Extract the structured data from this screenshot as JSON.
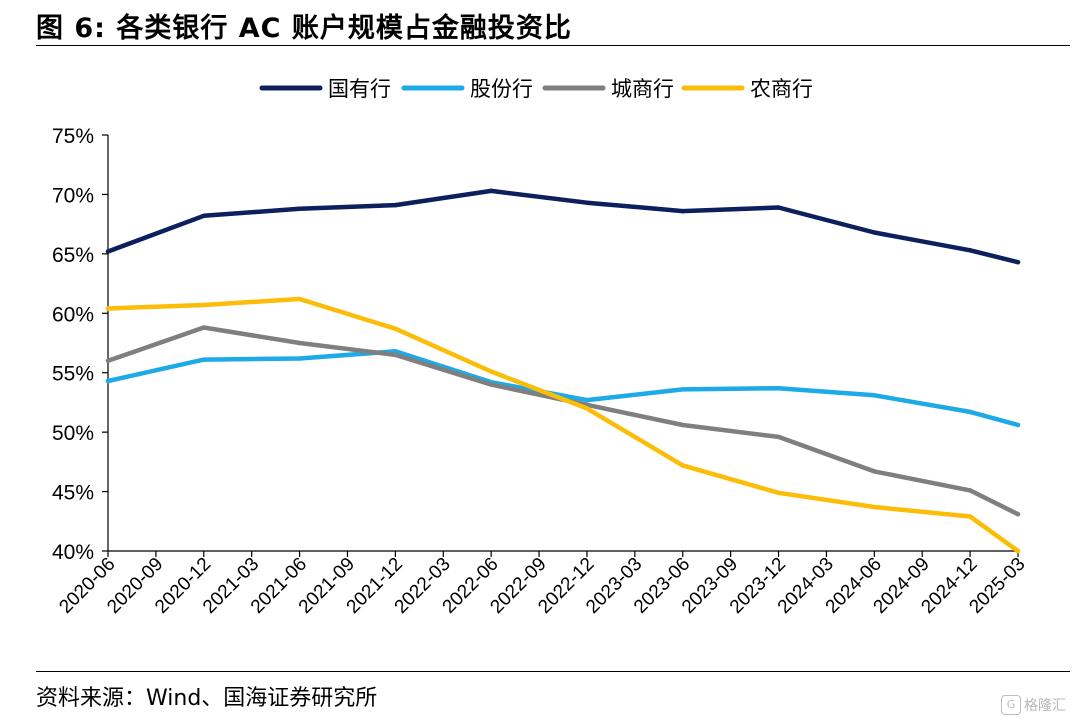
{
  "figure": {
    "title": "图 6:  各类银行 AC 账户规模占金融投资比",
    "source": "资料来源：Wind、国海证券研究所",
    "watermark": "格隆汇"
  },
  "chart_data": {
    "type": "line",
    "title": "",
    "xlabel": "",
    "ylabel": "",
    "ylim": [
      0.4,
      0.75
    ],
    "yticks": [
      "40%",
      "45%",
      "50%",
      "55%",
      "60%",
      "65%",
      "70%",
      "75%"
    ],
    "grid": false,
    "legend_position": "top-center",
    "categories": [
      "2020-06",
      "2020-09",
      "2020-12",
      "2021-03",
      "2021-06",
      "2021-09",
      "2021-12",
      "2022-03",
      "2022-06",
      "2022-09",
      "2022-12",
      "2023-03",
      "2023-06",
      "2023-09",
      "2023-12",
      "2024-03",
      "2024-06",
      "2024-09",
      "2024-12",
      "2025-03"
    ],
    "x": [
      "2020-06",
      "2020-12",
      "2021-06",
      "2021-12",
      "2022-06",
      "2022-12",
      "2023-06",
      "2023-12",
      "2024-06",
      "2024-12",
      "2025-03"
    ],
    "series": [
      {
        "name": "国有行",
        "color": "#0d1f5c",
        "values": [
          0.652,
          0.682,
          0.688,
          0.691,
          0.703,
          0.693,
          0.686,
          0.689,
          0.668,
          0.653,
          0.643
        ]
      },
      {
        "name": "股份行",
        "color": "#1eaae7",
        "values": [
          0.543,
          0.561,
          0.562,
          0.568,
          0.542,
          0.527,
          0.536,
          0.537,
          0.531,
          0.517,
          0.506
        ]
      },
      {
        "name": "城商行",
        "color": "#7f7f7f",
        "values": [
          0.56,
          0.588,
          0.575,
          0.565,
          0.54,
          0.523,
          0.506,
          0.496,
          0.467,
          0.451,
          0.431
        ]
      },
      {
        "name": "农商行",
        "color": "#fbbd07",
        "values": [
          0.604,
          0.607,
          0.612,
          0.587,
          0.551,
          0.52,
          0.472,
          0.449,
          0.437,
          0.429,
          0.4
        ]
      }
    ]
  }
}
